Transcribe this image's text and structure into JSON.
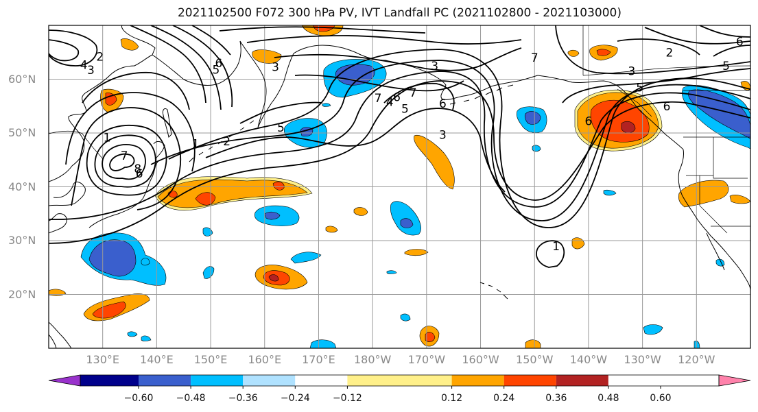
{
  "title": "2021102500 F072 300 hPa PV, IVT Landfall PC (2021102800 - 2021103000)",
  "lat_labels": [
    "60°N",
    "50°N",
    "40°N",
    "30°N",
    "20°N"
  ],
  "lon_labels": [
    "130°E",
    "140°E",
    "150°E",
    "160°E",
    "170°E",
    "180°W",
    "170°W",
    "160°W",
    "150°W",
    "140°W",
    "130°W",
    "120°W"
  ],
  "colorbar": {
    "colors": [
      "#9932cc",
      "#00008b",
      "#3a5fcd",
      "#00bfff",
      "#b0e2ff",
      "#ffffff",
      "#fff08a",
      "#ffa500",
      "#ff4500",
      "#b22222",
      "#ff82ab"
    ],
    "tick_labels": [
      "-0.60",
      "-0.48",
      "-0.36",
      "-0.24",
      "-0.12",
      "0.12",
      "0.24",
      "0.36",
      "0.48",
      "0.60"
    ],
    "min_color": "#9932cc",
    "max_color": "#ff82ab"
  },
  "contour_labels": [
    {
      "text": "2",
      "lon": 129.5,
      "lat": 64.2
    },
    {
      "text": "6",
      "lon": 151.5,
      "lat": 63.0
    },
    {
      "text": "5",
      "lon": 151.0,
      "lat": 61.8
    },
    {
      "text": "4",
      "lon": 126.5,
      "lat": 62.7
    },
    {
      "text": "3",
      "lon": 127.8,
      "lat": 61.7
    },
    {
      "text": "3",
      "lon": 162.0,
      "lat": 62.3
    },
    {
      "text": "1",
      "lon": 130.8,
      "lat": 49.2
    },
    {
      "text": "2",
      "lon": 153.0,
      "lat": 48.5
    },
    {
      "text": "5",
      "lon": 163.0,
      "lat": 51.0
    },
    {
      "text": "7",
      "lon": 134.0,
      "lat": 45.8
    },
    {
      "text": "8",
      "lon": 136.5,
      "lat": 43.4
    },
    {
      "text": "6",
      "lon": 136.8,
      "lat": 42.5
    },
    {
      "text": "1",
      "lon": 147.2,
      "lat": 48.0
    },
    {
      "text": "7",
      "lon": -179.0,
      "lat": 56.5
    },
    {
      "text": "7",
      "lon": -172.5,
      "lat": 57.5
    },
    {
      "text": "6",
      "lon": -175.5,
      "lat": 56.7
    },
    {
      "text": "5",
      "lon": -174.0,
      "lat": 54.5
    },
    {
      "text": "4",
      "lon": -176.8,
      "lat": 55.8
    },
    {
      "text": "6",
      "lon": -167.0,
      "lat": 55.5
    },
    {
      "text": "3",
      "lon": -167.0,
      "lat": 49.7
    },
    {
      "text": "3",
      "lon": -168.5,
      "lat": 62.5
    },
    {
      "text": "7",
      "lon": -150.0,
      "lat": 64.0
    },
    {
      "text": "3",
      "lon": -132.0,
      "lat": 61.5
    },
    {
      "text": "5",
      "lon": -130.5,
      "lat": 58.5
    },
    {
      "text": "6",
      "lon": -140.0,
      "lat": 52.2
    },
    {
      "text": "6",
      "lon": -125.5,
      "lat": 55.0
    },
    {
      "text": "2",
      "lon": -125.0,
      "lat": 65.0
    },
    {
      "text": "5",
      "lon": -114.5,
      "lat": 62.5
    },
    {
      "text": "6",
      "lon": -112.0,
      "lat": 67.0
    },
    {
      "text": "1",
      "lon": -146.0,
      "lat": 29.0
    }
  ]
}
